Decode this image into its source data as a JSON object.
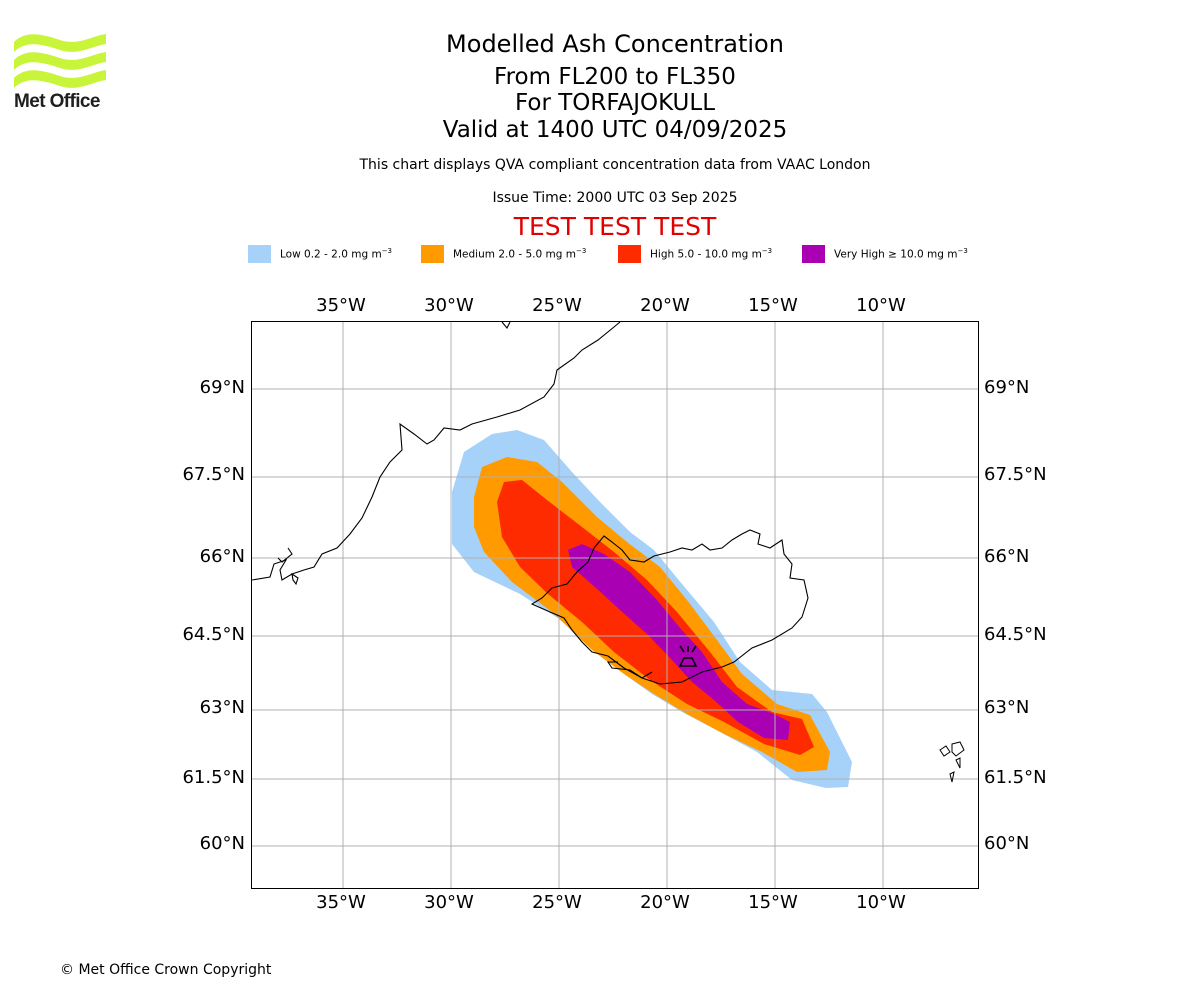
{
  "branding": {
    "logo_text": "Met Office",
    "logo_color": "#c8f53a"
  },
  "header": {
    "title": "Modelled Ash Concentration",
    "levels": "From FL200 to FL350",
    "volcano": "For TORFAJOKULL",
    "valid": "Valid at 1400 UTC 04/09/2025",
    "description": "This chart displays QVA compliant concentration data from VAAC London",
    "issue_time": "Issue Time: 2000 UTC 03 Sep 2025",
    "test_banner": "TEST TEST TEST",
    "test_color": "#e00000"
  },
  "legend": [
    {
      "label": "Low 0.2 - 2.0 mg m",
      "unit_exp": "−3",
      "color": "#a6d2fa"
    },
    {
      "label": "Medium 2.0 - 5.0 mg m",
      "unit_exp": "−3",
      "color": "#ff9a00"
    },
    {
      "label": "High 5.0 - 10.0 mg m",
      "unit_exp": "−3",
      "color": "#ff2b00"
    },
    {
      "label": "Very High ≥ 10.0 mg m",
      "unit_exp": "−3",
      "color": "#aa00b4"
    }
  ],
  "map": {
    "lon_ticks": [
      "35°W",
      "30°W",
      "25°W",
      "20°W",
      "15°W",
      "10°W"
    ],
    "lat_ticks": [
      "69°N",
      "67.5°N",
      "66°N",
      "64.5°N",
      "63°N",
      "61.5°N",
      "60°N"
    ],
    "gridlines": true,
    "volcano_marker": "volcano-icon",
    "coastline_color": "#000000",
    "grid_color": "#b0b0b0"
  },
  "footer": {
    "copyright": "© Met Office Crown Copyright"
  }
}
